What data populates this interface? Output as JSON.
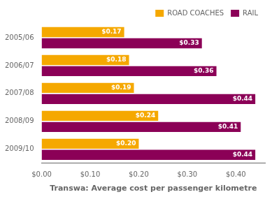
{
  "chart_data": {
    "type": "bar",
    "orientation": "horizontal",
    "categories": [
      "2005/06",
      "2006/07",
      "2007/08",
      "2008/09",
      "2009/10"
    ],
    "series": [
      {
        "name": "ROAD COACHES",
        "color": "#F5A800",
        "values": [
          0.17,
          0.18,
          0.19,
          0.24,
          0.2
        ],
        "value_labels": [
          "$0.17",
          "$0.18",
          "$0.19",
          "$0.24",
          "$0.20"
        ]
      },
      {
        "name": "RAIL",
        "color": "#8B0057",
        "values": [
          0.33,
          0.36,
          0.44,
          0.41,
          0.44
        ],
        "value_labels": [
          "$0.33",
          "$0.36",
          "$0.44",
          "$0.41",
          "$0.44"
        ]
      }
    ],
    "xlabel": "Transwa: Average cost per passenger kilometre",
    "xlim": [
      0,
      0.46
    ],
    "xticks": [
      {
        "value": 0.0,
        "label": "$0.00"
      },
      {
        "value": 0.1,
        "label": "$0.10"
      },
      {
        "value": 0.2,
        "label": "$0.20"
      },
      {
        "value": 0.3,
        "label": "$0.30"
      },
      {
        "value": 0.4,
        "label": "$0.40"
      }
    ],
    "data_labels": true,
    "legend": "upper right",
    "grid": false
  }
}
